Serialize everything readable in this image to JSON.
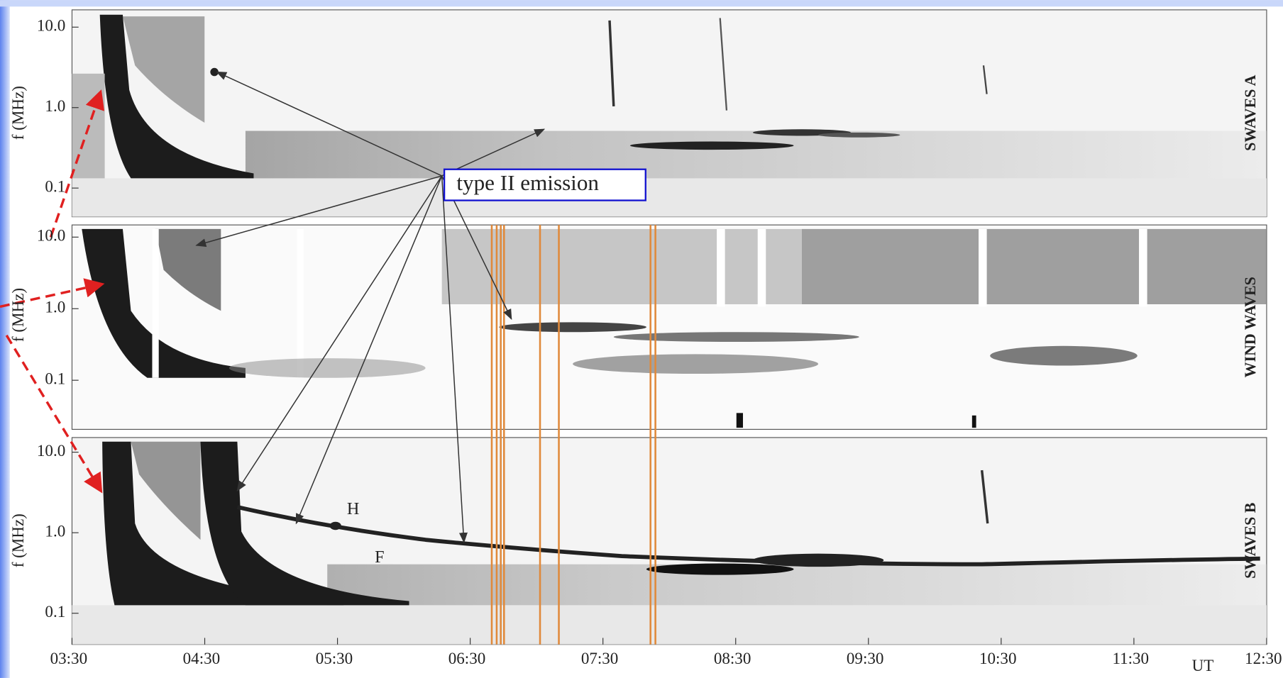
{
  "chart_data": [
    {
      "type": "spectrogram",
      "title": "SWAVES A",
      "ylabel": "f (MHz)",
      "log_y": true,
      "ylim": [
        0.044,
        16.4
      ],
      "yticks": [
        {
          "value": 10,
          "label": "10.0"
        },
        {
          "value": 1,
          "label": "1.0"
        },
        {
          "value": 0.1,
          "label": "0.1"
        }
      ],
      "annotations": [
        "type II emission"
      ]
    },
    {
      "type": "spectrogram",
      "title": "WIND WAVES",
      "ylabel": "f (MHz)",
      "log_y": true,
      "ylim": [
        0.0206,
        14.8
      ],
      "yticks": [
        {
          "value": 10,
          "label": "10.0"
        },
        {
          "value": 1,
          "label": "1.0"
        },
        {
          "value": 0.1,
          "label": "0.1"
        }
      ]
    },
    {
      "type": "spectrogram",
      "title": "SWAVES B",
      "ylabel": "f (MHz)",
      "log_y": true,
      "ylim": [
        0.041,
        15.2
      ],
      "yticks": [
        {
          "value": 10,
          "label": "10.0"
        },
        {
          "value": 1,
          "label": "1.0"
        },
        {
          "value": 0.1,
          "label": "0.1"
        }
      ],
      "xlabel": "UT",
      "xlim": [
        3.5,
        12.5
      ],
      "xticks": [
        {
          "value": 3.5,
          "label": "03:30"
        },
        {
          "value": 4.5,
          "label": "04:30"
        },
        {
          "value": 5.5,
          "label": "05:30"
        },
        {
          "value": 6.5,
          "label": "06:30"
        },
        {
          "value": 7.5,
          "label": "07:30"
        },
        {
          "value": 8.5,
          "label": "08:30"
        },
        {
          "value": 9.5,
          "label": "09:30"
        },
        {
          "value": 10.5,
          "label": "10:30"
        },
        {
          "value": 11.5,
          "label": "11:30"
        },
        {
          "value": 12.5,
          "label": "12:30"
        }
      ],
      "annotations": [
        "H",
        "F"
      ]
    }
  ]
}
